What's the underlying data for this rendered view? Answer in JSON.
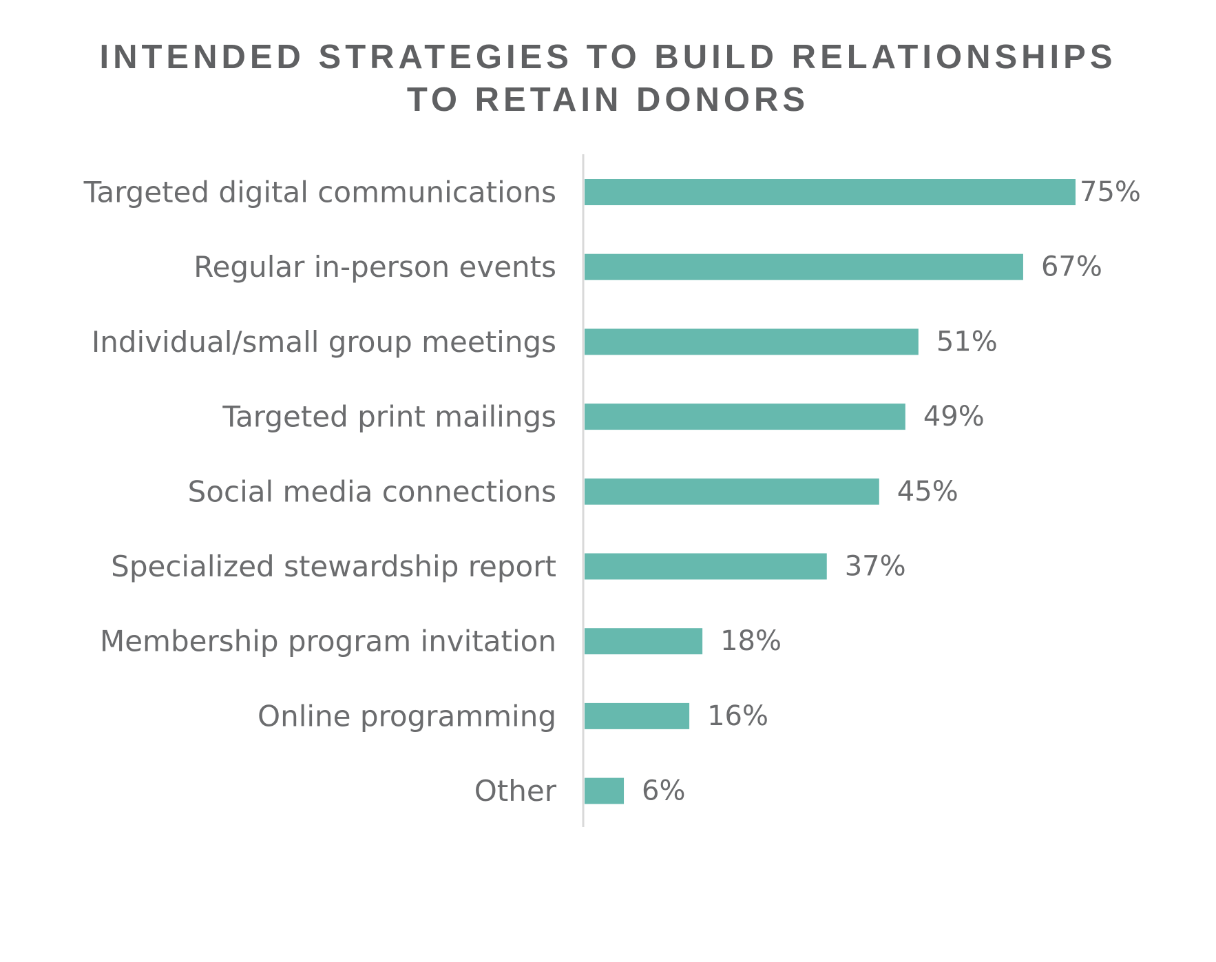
{
  "chart_data": {
    "type": "bar",
    "orientation": "horizontal",
    "title_lines": [
      "INTENDED STRATEGIES TO BUILD RELATIONSHIPS",
      "TO RETAIN DONORS"
    ],
    "categories": [
      "Targeted digital communications",
      "Regular in-person events",
      "Individual/small group meetings",
      "Targeted print mailings",
      "Social media connections",
      "Specialized stewardship report",
      "Membership program invitation",
      "Online programming",
      "Other"
    ],
    "values": [
      75,
      67,
      51,
      49,
      45,
      37,
      18,
      16,
      6
    ],
    "value_labels": [
      "75%",
      "67%",
      "51%",
      "49%",
      "45%",
      "37%",
      "18%",
      "16%",
      "6%"
    ],
    "unit": "%",
    "xlim": [
      0,
      75
    ],
    "grid": false,
    "legend": "none",
    "bar_color": "#66b9ae",
    "axis_color": "#d9d9d9",
    "text_color": "#6b6c6e"
  }
}
